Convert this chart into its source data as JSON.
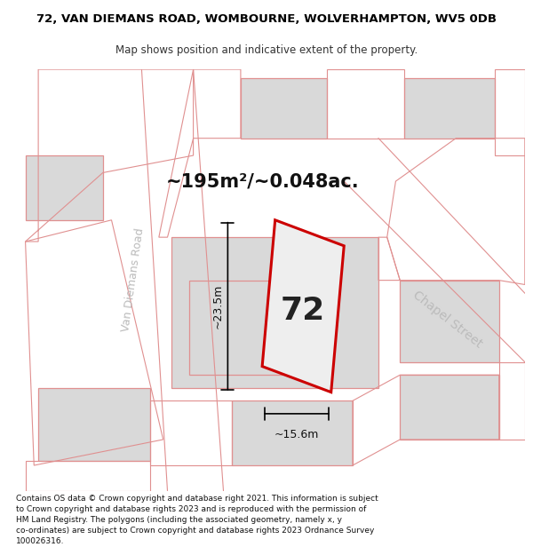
{
  "title": "72, VAN DIEMANS ROAD, WOMBOURNE, WOLVERHAMPTON, WV5 0DB",
  "subtitle": "Map shows position and indicative extent of the property.",
  "area_text": "~195m²/~0.048ac.",
  "number_label": "72",
  "dim_vertical": "~23.5m",
  "dim_horizontal": "~15.6m",
  "street_left": "Van Diemans Road",
  "street_right": "Chapel Street",
  "copyright_text": "Contains OS data © Crown copyright and database right 2021. This information is subject\nto Crown copyright and database rights 2023 and is reproduced with the permission of\nHM Land Registry. The polygons (including the associated geometry, namely x, y\nco-ordinates) are subject to Crown copyright and database rights 2023 Ordnance Survey\n100026316.",
  "map_bg": "#f7f7f7",
  "building_color": "#d9d9d9",
  "plot_outline_color": "#e09090",
  "main_outline_color": "#cc0000",
  "title_fontsize": 9.5,
  "subtitle_fontsize": 8.5,
  "copyright_fontsize": 6.5
}
